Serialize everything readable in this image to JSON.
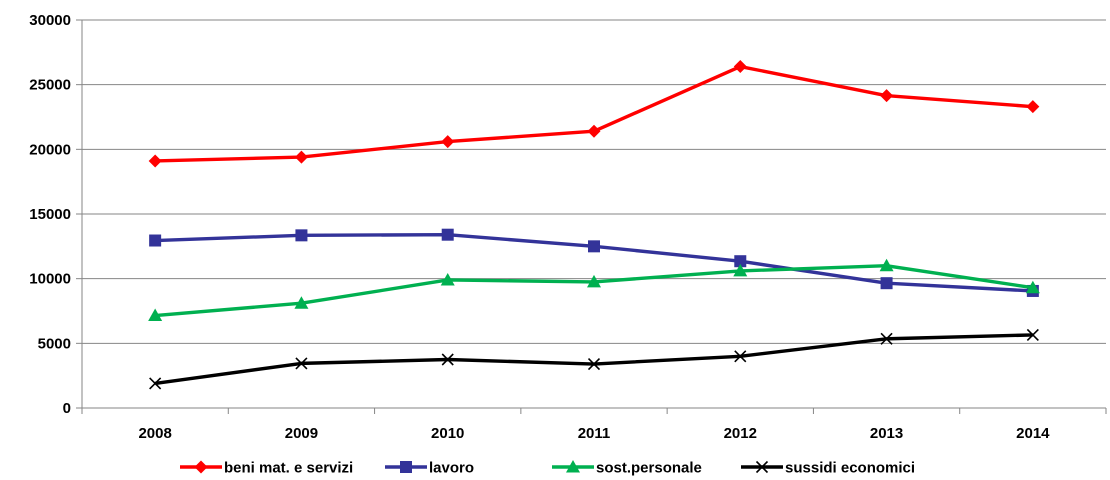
{
  "chart_data": {
    "type": "line",
    "title": "",
    "xlabel": "",
    "ylabel": "",
    "categories": [
      "2008",
      "2009",
      "2010",
      "2011",
      "2012",
      "2013",
      "2014"
    ],
    "ylim": [
      0,
      30000
    ],
    "yticks": [
      0,
      5000,
      10000,
      15000,
      20000,
      25000,
      30000
    ],
    "grid": "horizontal",
    "legend": "bottom",
    "series": [
      {
        "name": "beni mat. e servizi",
        "color": "#ff0000",
        "marker": "diamond",
        "values": [
          19100,
          19400,
          20600,
          21400,
          26400,
          24150,
          23300
        ]
      },
      {
        "name": "lavoro",
        "color": "#333399",
        "marker": "square",
        "values": [
          12950,
          13350,
          13400,
          12500,
          11350,
          9650,
          9050
        ]
      },
      {
        "name": "sost.personale",
        "color": "#00b050",
        "marker": "triangle",
        "values": [
          7150,
          8100,
          9900,
          9750,
          10600,
          11000,
          9300
        ]
      },
      {
        "name": "sussidi economici",
        "color": "#000000",
        "marker": "x",
        "values": [
          1900,
          3450,
          3750,
          3400,
          4000,
          5350,
          5650
        ]
      }
    ]
  }
}
